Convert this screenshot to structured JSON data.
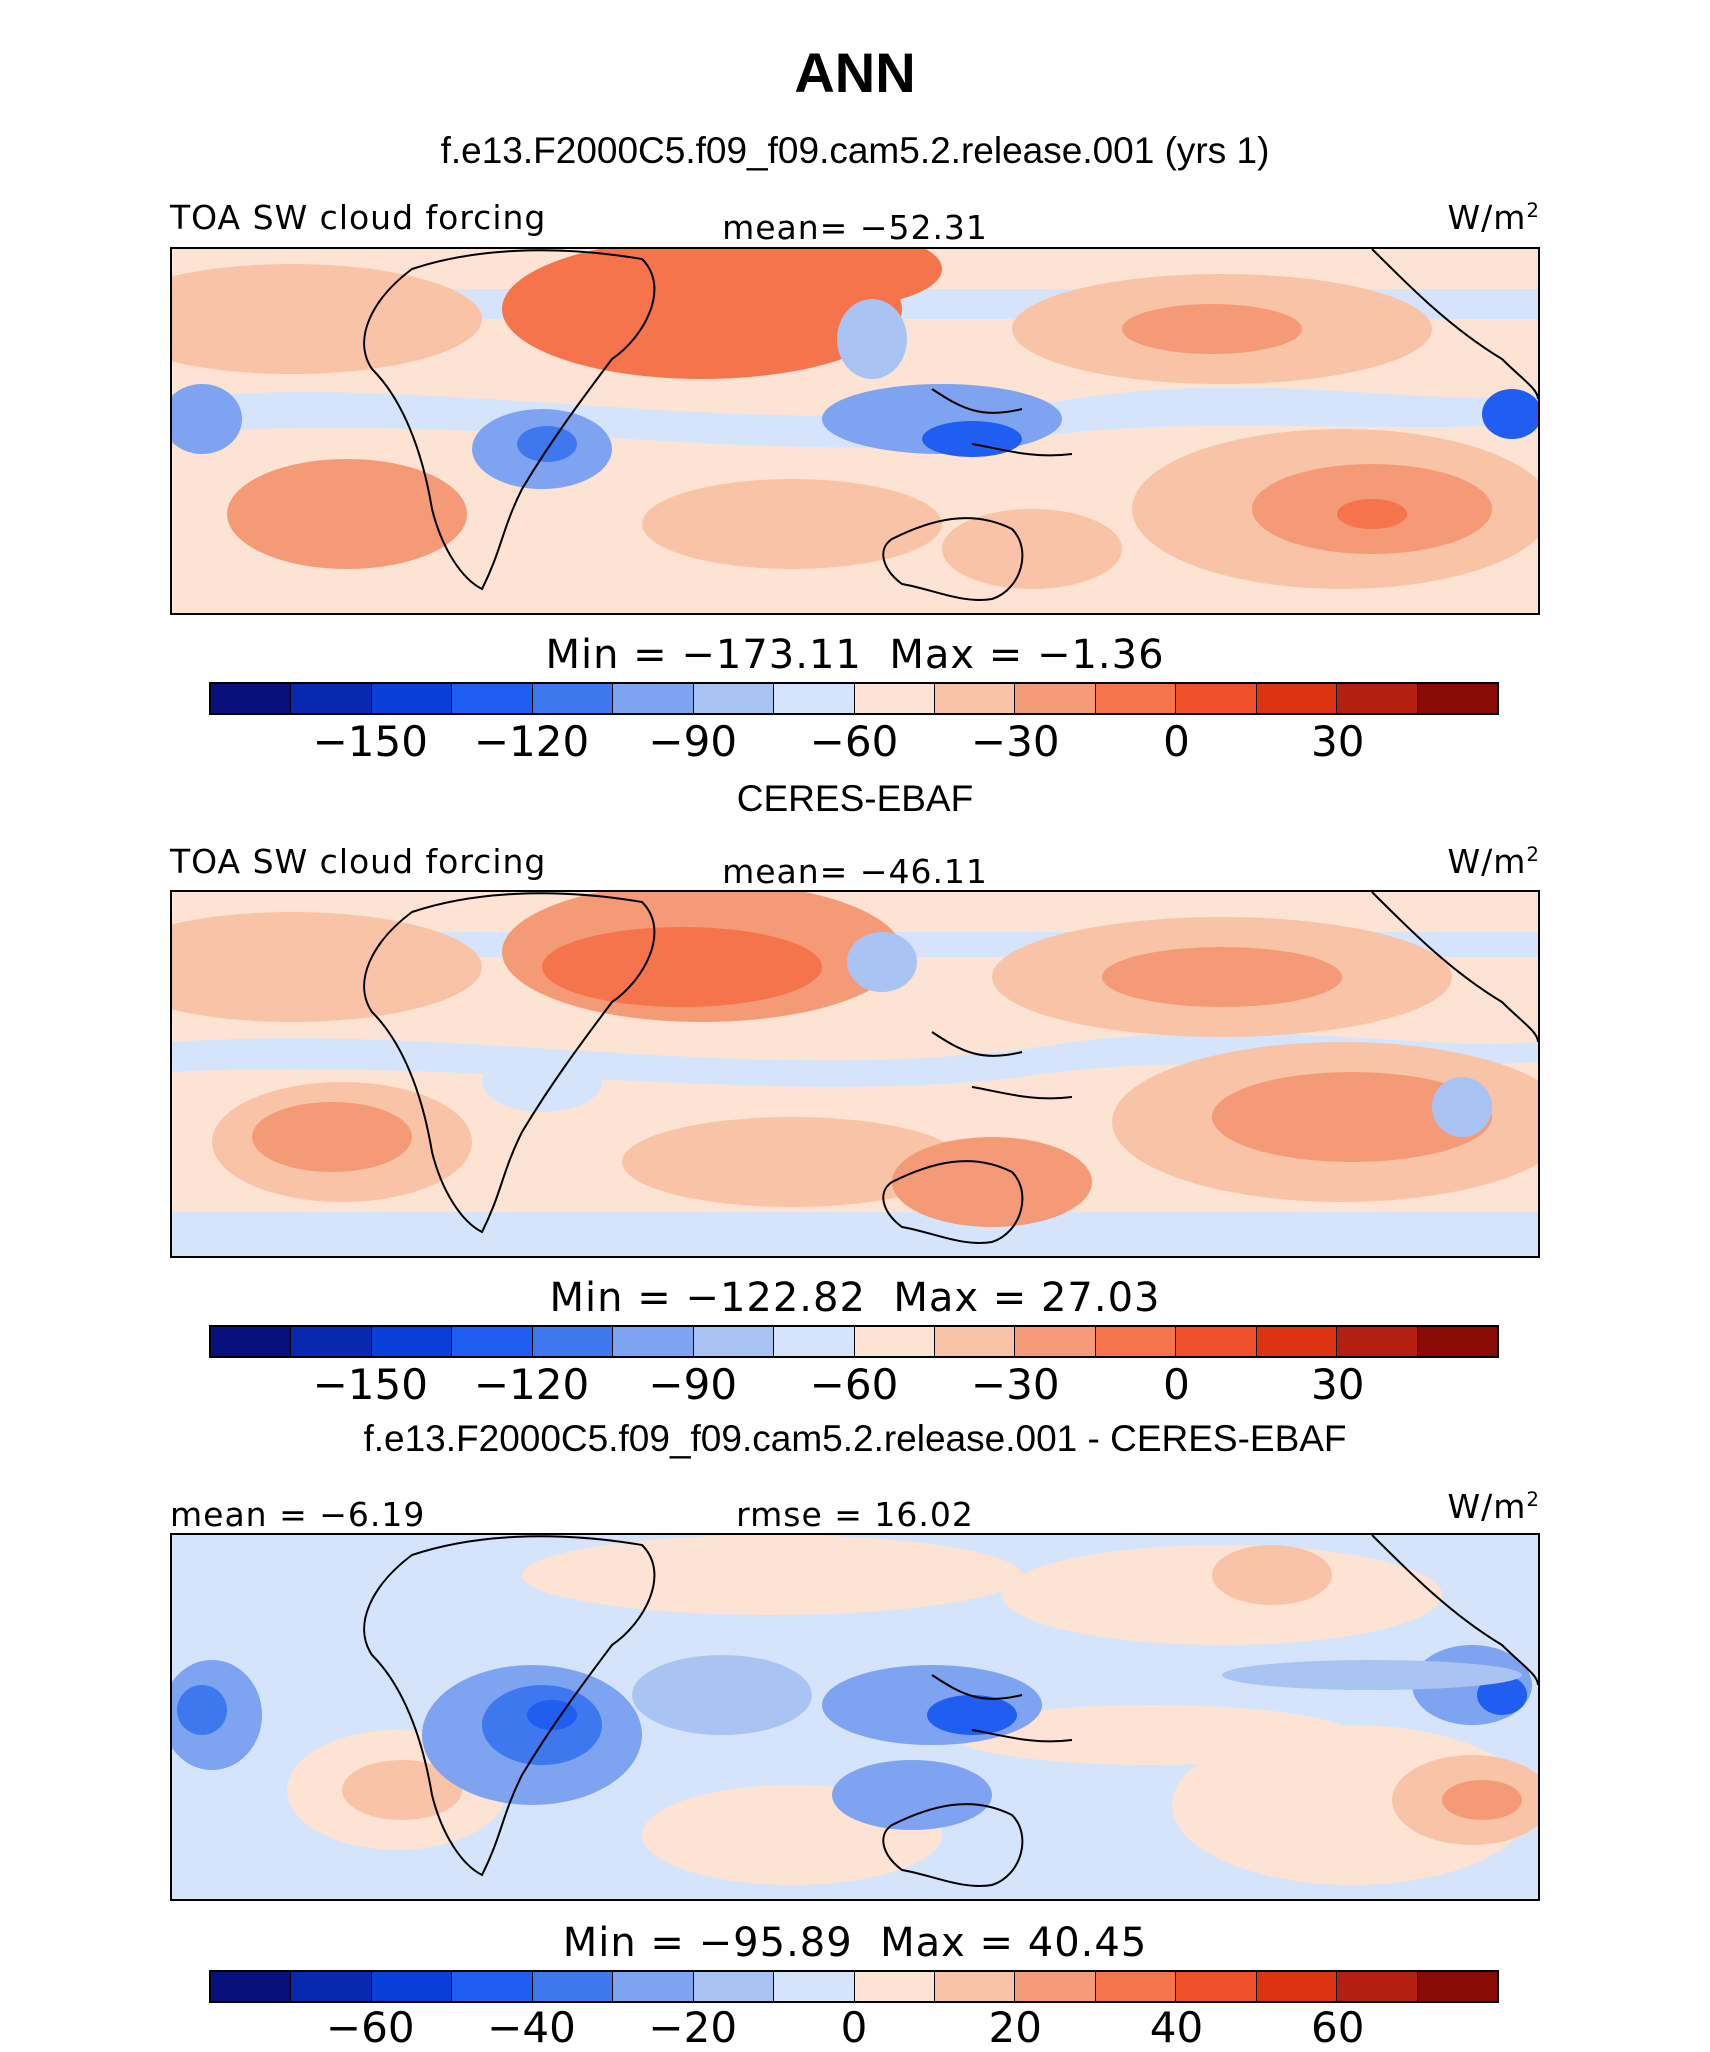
{
  "main_title": "ANN",
  "panels": [
    {
      "title": "f.e13.F2000C5.f09_f09.cam5.2.release.001 (yrs 1)",
      "left_label": "TOA SW cloud forcing",
      "center_label": "mean= −52.31",
      "units": "W/m",
      "units_exp": "2",
      "min_text": "Min = −173.11",
      "max_text": "Max = −1.36",
      "min": -173.11,
      "max": -1.36,
      "mean": -52.31,
      "ticks": [
        "−150",
        "−120",
        "−90",
        "−60",
        "−30",
        "0",
        "30"
      ]
    },
    {
      "title": "CERES-EBAF",
      "left_label": "TOA SW cloud forcing",
      "center_label": "mean= −46.11",
      "units": "W/m",
      "units_exp": "2",
      "min_text": "Min = −122.82",
      "max_text": "Max = 27.03",
      "min": -122.82,
      "max": 27.03,
      "mean": -46.11,
      "ticks": [
        "−150",
        "−120",
        "−90",
        "−60",
        "−30",
        "0",
        "30"
      ]
    },
    {
      "title": "f.e13.F2000C5.f09_f09.cam5.2.release.001 - CERES-EBAF",
      "left_label": "mean = −6.19",
      "center_label": "rmse = 16.02",
      "units": "W/m",
      "units_exp": "2",
      "min_text": "Min = −95.89",
      "max_text": "Max = 40.45",
      "min": -95.89,
      "max": 40.45,
      "mean": -6.19,
      "rmse": 16.02,
      "ticks": [
        "−60",
        "−40",
        "−20",
        "0",
        "20",
        "40",
        "60"
      ]
    }
  ],
  "colorbar_colors": [
    "#08107e",
    "#0828b0",
    "#0a3ed8",
    "#1f5ef0",
    "#3e78ee",
    "#7ea3f0",
    "#a9c3f3",
    "#d5e4fb",
    "#fde3d3",
    "#f9c3a7",
    "#f59a76",
    "#f5744c",
    "#f0502a",
    "#dc3410",
    "#b42010",
    "#8a0a06"
  ]
}
